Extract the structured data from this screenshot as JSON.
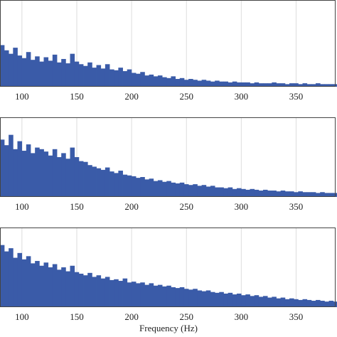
{
  "chart_data": [
    {
      "type": "bar",
      "color": "#3a5ba8",
      "grid": true,
      "x": [
        82,
        86,
        90,
        94,
        98,
        102,
        106,
        110,
        114,
        118,
        122,
        126,
        130,
        134,
        138,
        142,
        146,
        150,
        154,
        158,
        162,
        166,
        170,
        174,
        178,
        182,
        186,
        190,
        194,
        198,
        202,
        206,
        210,
        214,
        218,
        222,
        226,
        230,
        234,
        238,
        242,
        246,
        250,
        254,
        258,
        262,
        266,
        270,
        274,
        278,
        282,
        286,
        290,
        294,
        298,
        302,
        306,
        310,
        314,
        318,
        322,
        326,
        330,
        334,
        338,
        342,
        346,
        350,
        354,
        358,
        362,
        366,
        370,
        374,
        378,
        382,
        386
      ],
      "values": [
        0.48,
        0.42,
        0.38,
        0.45,
        0.36,
        0.33,
        0.4,
        0.31,
        0.35,
        0.29,
        0.34,
        0.3,
        0.37,
        0.28,
        0.32,
        0.27,
        0.38,
        0.29,
        0.26,
        0.24,
        0.28,
        0.22,
        0.25,
        0.21,
        0.26,
        0.2,
        0.19,
        0.22,
        0.18,
        0.2,
        0.16,
        0.15,
        0.17,
        0.13,
        0.14,
        0.12,
        0.13,
        0.11,
        0.1,
        0.12,
        0.09,
        0.1,
        0.08,
        0.09,
        0.08,
        0.07,
        0.08,
        0.07,
        0.06,
        0.07,
        0.06,
        0.06,
        0.05,
        0.06,
        0.05,
        0.05,
        0.05,
        0.04,
        0.05,
        0.04,
        0.04,
        0.04,
        0.05,
        0.04,
        0.04,
        0.03,
        0.04,
        0.04,
        0.03,
        0.04,
        0.03,
        0.03,
        0.04,
        0.03,
        0.03,
        0.03,
        0.03
      ],
      "xlim": [
        80,
        386
      ],
      "xticks": [
        100,
        150,
        200,
        250,
        300,
        350
      ],
      "ylim": [
        0,
        1
      ]
    },
    {
      "type": "bar",
      "color": "#3a5ba8",
      "grid": true,
      "x": [
        82,
        86,
        90,
        94,
        98,
        102,
        106,
        110,
        114,
        118,
        122,
        126,
        130,
        134,
        138,
        142,
        146,
        150,
        154,
        158,
        162,
        166,
        170,
        174,
        178,
        182,
        186,
        190,
        194,
        198,
        202,
        206,
        210,
        214,
        218,
        222,
        226,
        230,
        234,
        238,
        242,
        246,
        250,
        254,
        258,
        262,
        266,
        270,
        274,
        278,
        282,
        286,
        290,
        294,
        298,
        302,
        306,
        310,
        314,
        318,
        322,
        326,
        330,
        334,
        338,
        342,
        346,
        350,
        354,
        358,
        362,
        366,
        370,
        374,
        378,
        382,
        386
      ],
      "values": [
        0.72,
        0.65,
        0.78,
        0.6,
        0.7,
        0.58,
        0.66,
        0.55,
        0.62,
        0.6,
        0.57,
        0.52,
        0.6,
        0.5,
        0.55,
        0.48,
        0.62,
        0.5,
        0.45,
        0.44,
        0.4,
        0.38,
        0.36,
        0.34,
        0.37,
        0.32,
        0.3,
        0.33,
        0.28,
        0.27,
        0.26,
        0.24,
        0.25,
        0.22,
        0.23,
        0.2,
        0.21,
        0.19,
        0.2,
        0.18,
        0.17,
        0.18,
        0.16,
        0.15,
        0.16,
        0.14,
        0.15,
        0.13,
        0.14,
        0.12,
        0.12,
        0.11,
        0.12,
        0.1,
        0.11,
        0.1,
        0.09,
        0.1,
        0.09,
        0.08,
        0.09,
        0.08,
        0.08,
        0.07,
        0.08,
        0.07,
        0.07,
        0.06,
        0.07,
        0.06,
        0.06,
        0.06,
        0.05,
        0.06,
        0.05,
        0.05,
        0.05
      ],
      "xlim": [
        80,
        386
      ],
      "xticks": [
        100,
        150,
        200,
        250,
        300,
        350
      ],
      "ylim": [
        0,
        1
      ]
    },
    {
      "type": "bar",
      "color": "#3a5ba8",
      "grid": true,
      "x_label": "Frequency (Hz)",
      "x": [
        82,
        86,
        90,
        94,
        98,
        102,
        106,
        110,
        114,
        118,
        122,
        126,
        130,
        134,
        138,
        142,
        146,
        150,
        154,
        158,
        162,
        166,
        170,
        174,
        178,
        182,
        186,
        190,
        194,
        198,
        202,
        206,
        210,
        214,
        218,
        222,
        226,
        230,
        234,
        238,
        242,
        246,
        250,
        254,
        258,
        262,
        266,
        270,
        274,
        278,
        282,
        286,
        290,
        294,
        298,
        302,
        306,
        310,
        314,
        318,
        322,
        326,
        330,
        334,
        338,
        342,
        346,
        350,
        354,
        358,
        362,
        366,
        370,
        374,
        378,
        382,
        386
      ],
      "values": [
        0.78,
        0.7,
        0.74,
        0.62,
        0.68,
        0.6,
        0.64,
        0.55,
        0.58,
        0.52,
        0.56,
        0.5,
        0.54,
        0.47,
        0.5,
        0.45,
        0.52,
        0.44,
        0.42,
        0.4,
        0.43,
        0.38,
        0.4,
        0.36,
        0.38,
        0.34,
        0.35,
        0.33,
        0.36,
        0.31,
        0.32,
        0.3,
        0.31,
        0.28,
        0.3,
        0.27,
        0.28,
        0.26,
        0.27,
        0.25,
        0.24,
        0.25,
        0.23,
        0.22,
        0.23,
        0.21,
        0.2,
        0.21,
        0.19,
        0.18,
        0.19,
        0.17,
        0.18,
        0.16,
        0.17,
        0.15,
        0.16,
        0.14,
        0.15,
        0.13,
        0.14,
        0.12,
        0.13,
        0.11,
        0.12,
        0.1,
        0.11,
        0.1,
        0.09,
        0.1,
        0.09,
        0.08,
        0.09,
        0.08,
        0.07,
        0.08,
        0.07
      ],
      "xlim": [
        80,
        386
      ],
      "xticks": [
        100,
        150,
        200,
        250,
        300,
        350
      ],
      "ylim": [
        0,
        1
      ]
    }
  ]
}
